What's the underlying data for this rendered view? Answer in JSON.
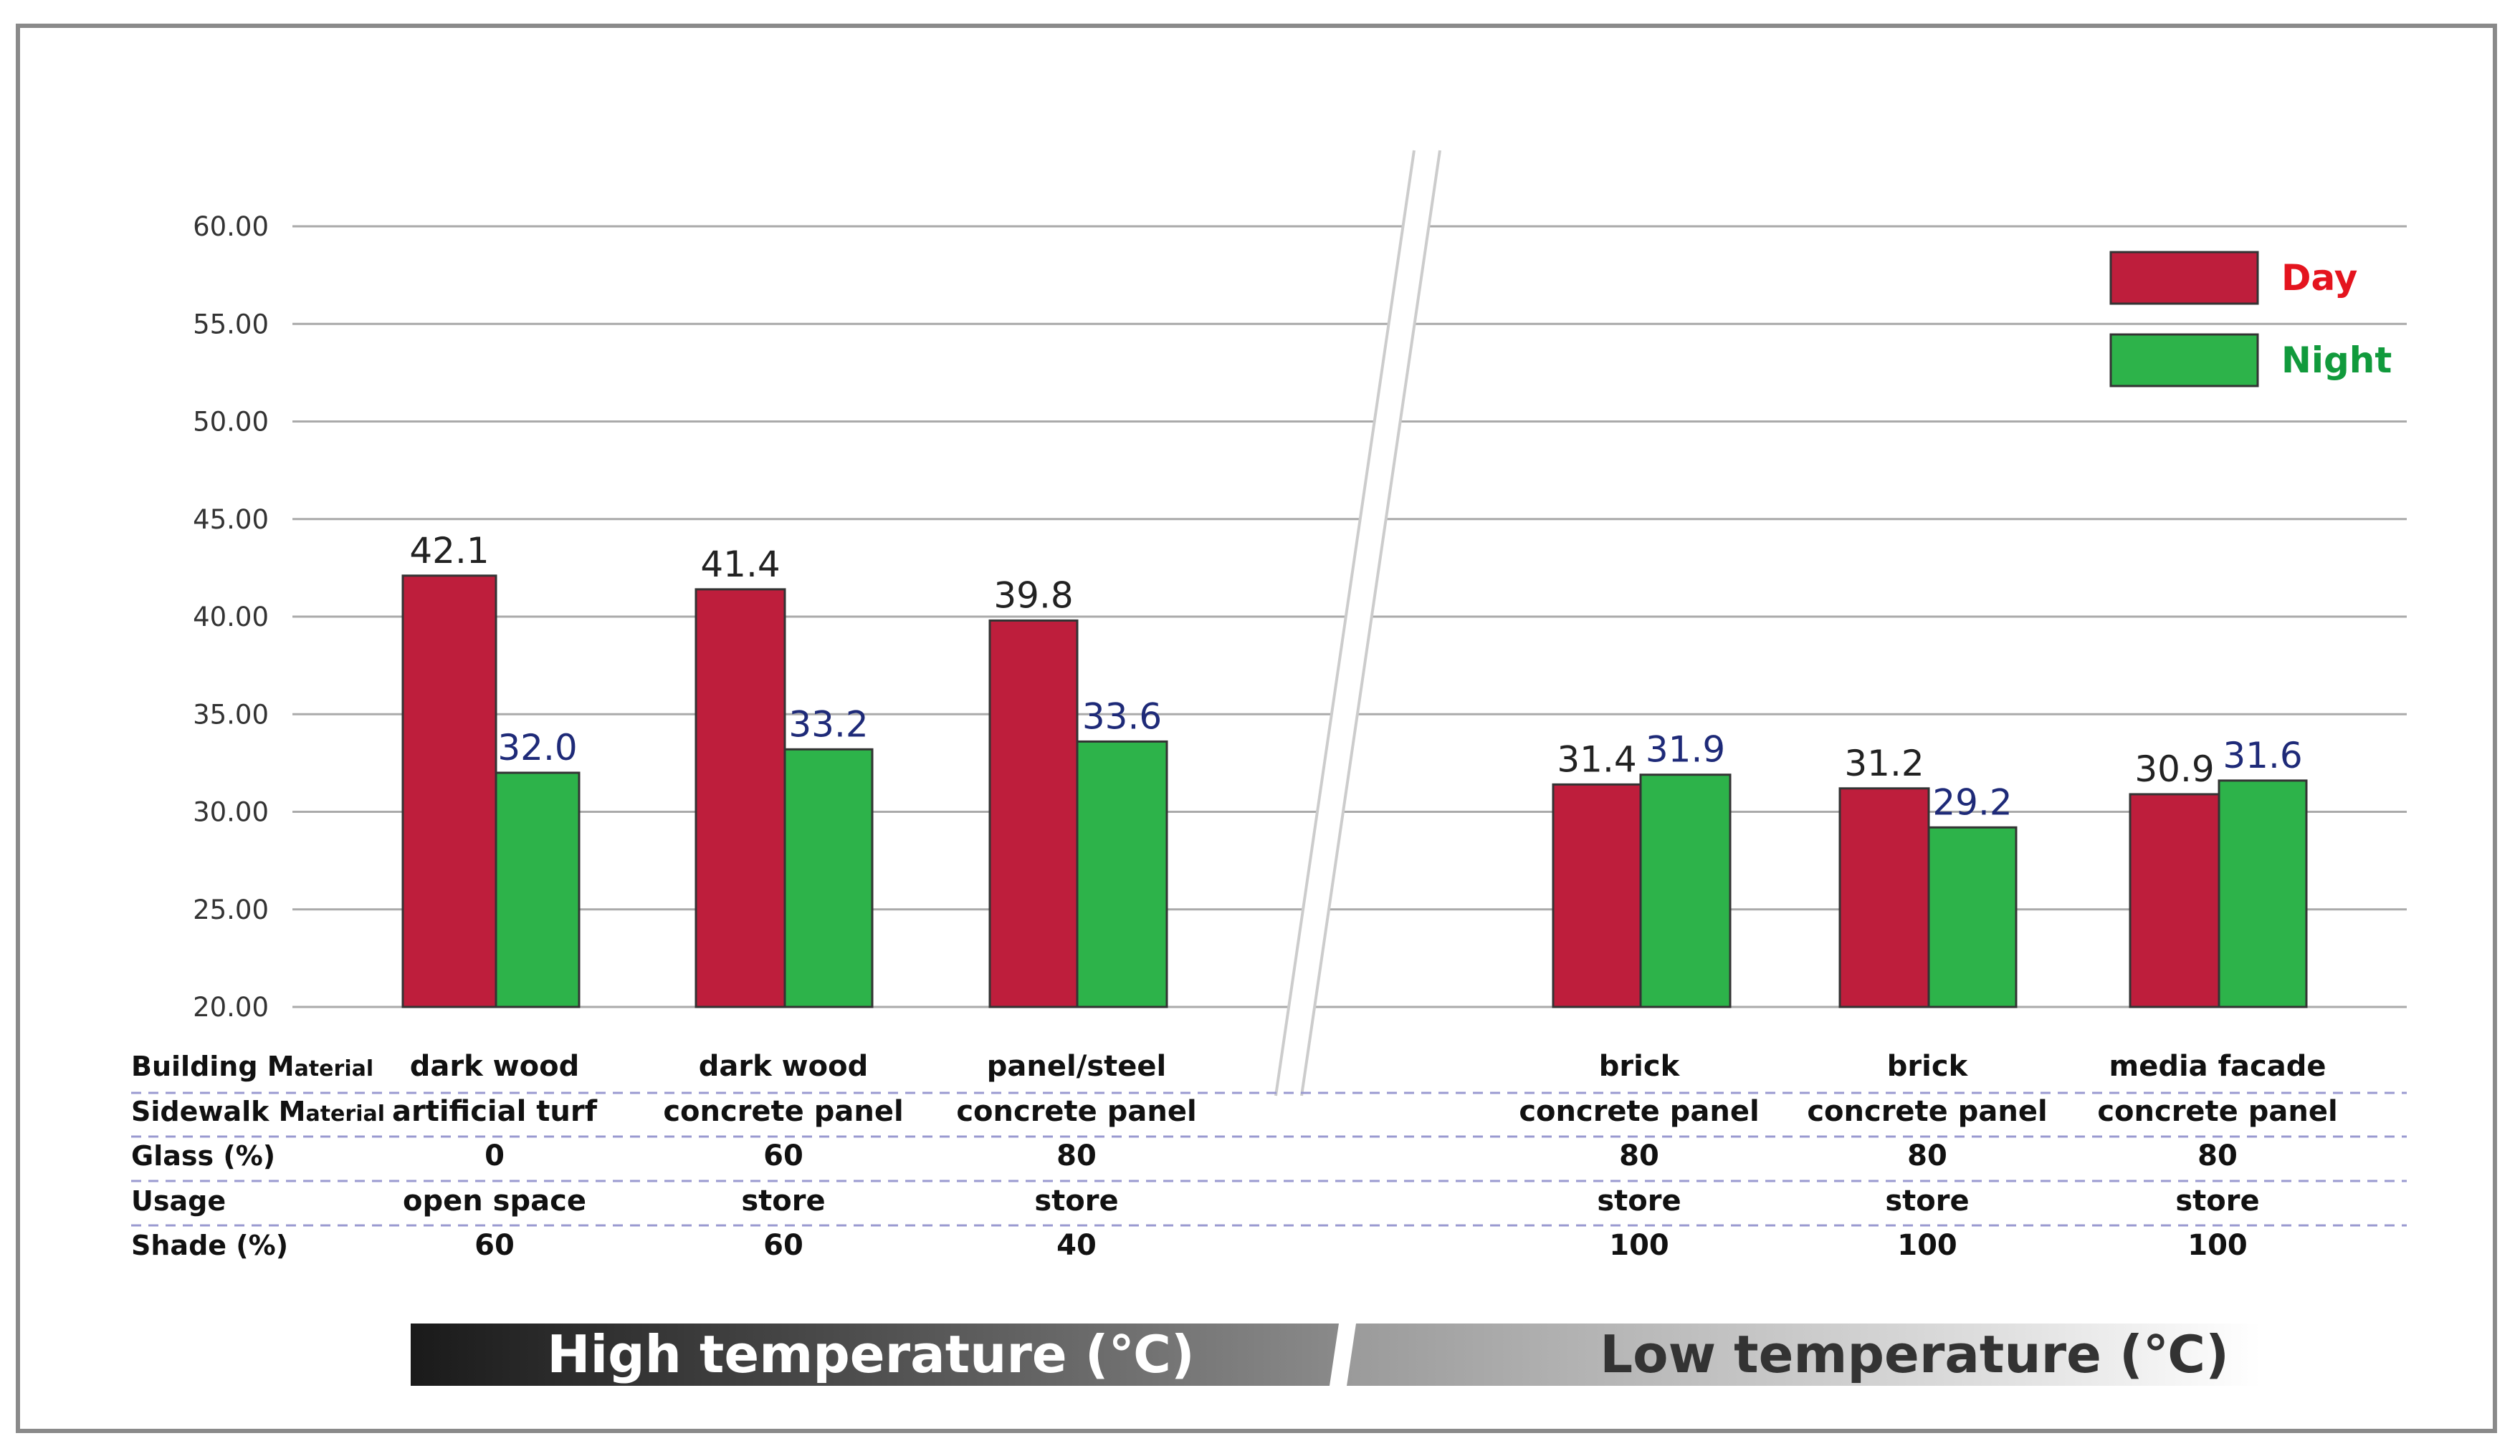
{
  "colors": {
    "day": "#BE1E3C",
    "night": "#2DB34A",
    "night_label": "#1E2A78",
    "legend_day_text": "#E4141E",
    "legend_night_text": "#119A3C",
    "grid": "#aaaaaa"
  },
  "chart_data": {
    "type": "bar",
    "title": "",
    "xlabel": "",
    "ylabel": "",
    "ylim": [
      20,
      60
    ],
    "yticks": [
      "20.00",
      "25.00",
      "30.00",
      "35.00",
      "40.00",
      "45.00",
      "50.00",
      "55.00",
      "60.00"
    ],
    "legend": {
      "position": "top-right",
      "day": "Day",
      "night": "Night"
    },
    "series": [
      {
        "name": "Day",
        "values": [
          42.1,
          41.4,
          39.8,
          31.4,
          31.2,
          30.9
        ],
        "labels": [
          "42.1",
          "41.4",
          "39.8",
          "31.4",
          "31.2",
          "30.9"
        ]
      },
      {
        "name": "Night",
        "values": [
          32.0,
          33.2,
          33.6,
          31.9,
          29.2,
          31.6
        ],
        "labels": [
          "32.0",
          "33.2",
          "33.6",
          "31.9",
          "29.2",
          "31.6"
        ]
      }
    ],
    "table": {
      "row_headers": [
        {
          "main": "Building M",
          "small": "aterial"
        },
        {
          "main": "Sidewalk M",
          "small": "aterial"
        },
        {
          "main": "Glass (%)",
          "small": ""
        },
        {
          "main": "Usage",
          "small": ""
        },
        {
          "main": "Shade (%)",
          "small": ""
        }
      ],
      "columns": [
        [
          "dark wood",
          "artificial turf",
          "0",
          "open space",
          "60"
        ],
        [
          "dark wood",
          "concrete panel",
          "60",
          "store",
          "60"
        ],
        [
          "panel/steel",
          "concrete panel",
          "80",
          "store",
          "40"
        ],
        [
          "brick",
          "concrete panel",
          "80",
          "store",
          "100"
        ],
        [
          "brick",
          "concrete panel",
          "80",
          "store",
          "100"
        ],
        [
          "media facade",
          "concrete panel",
          "80",
          "store",
          "100"
        ]
      ]
    },
    "groups": [
      {
        "label": "High temperature (℃)"
      },
      {
        "label": "Low temperature (℃)"
      }
    ]
  }
}
